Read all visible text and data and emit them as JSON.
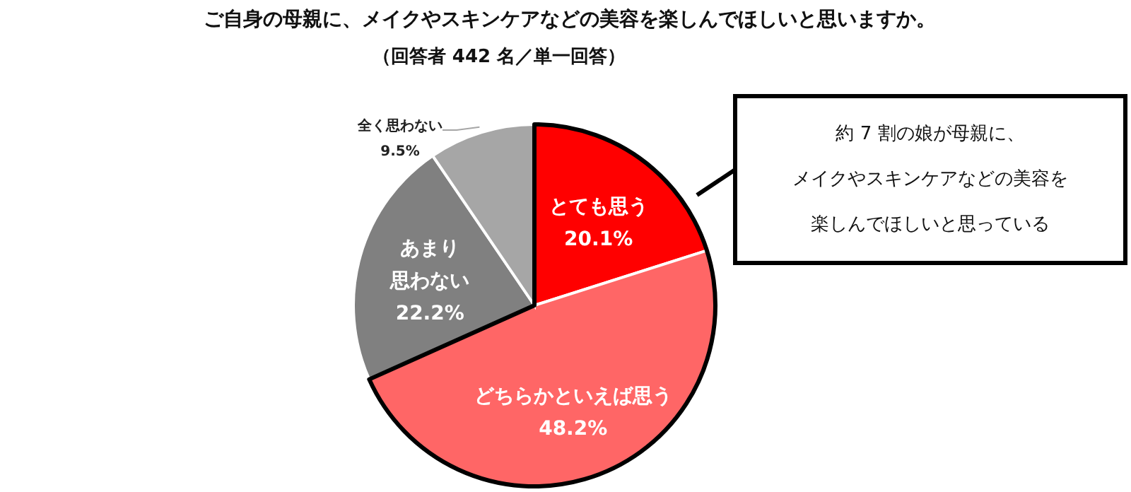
{
  "chart_data": {
    "type": "pie",
    "title": "ご自身の母親に、メイクやスキンケアなどの美容を楽しんでほしいと思いますか。",
    "subtitle": "（回答者 442 名／単一回答）",
    "categories": [
      "とても思う",
      "どちらかといえば思う",
      "あまり思わない",
      "全く思わない"
    ],
    "values": [
      20.1,
      48.2,
      22.2,
      9.5
    ],
    "colors": [
      "#ff0000",
      "#ff6666",
      "#808080",
      "#a6a6a6"
    ],
    "value_labels": [
      "20.1%",
      "48.2%",
      "22.2%",
      "9.5%"
    ],
    "annotations": [
      "約 7 割の娘が母親に、",
      "メイクやスキンケアなどの美容を",
      "楽しんでほしいと思っている"
    ]
  }
}
